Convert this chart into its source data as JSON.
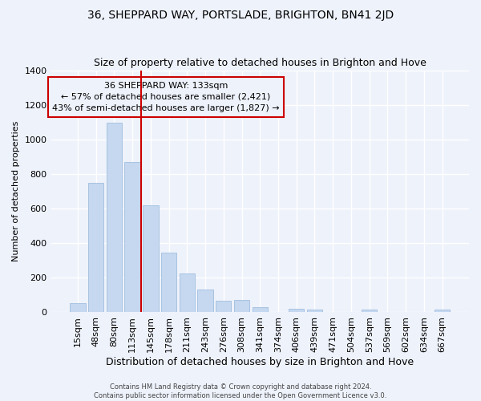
{
  "title": "36, SHEPPARD WAY, PORTSLADE, BRIGHTON, BN41 2JD",
  "subtitle": "Size of property relative to detached houses in Brighton and Hove",
  "xlabel": "Distribution of detached houses by size in Brighton and Hove",
  "ylabel": "Number of detached properties",
  "footnote1": "Contains HM Land Registry data © Crown copyright and database right 2024.",
  "footnote2": "Contains public sector information licensed under the Open Government Licence v3.0.",
  "categories": [
    "15sqm",
    "48sqm",
    "80sqm",
    "113sqm",
    "145sqm",
    "178sqm",
    "211sqm",
    "243sqm",
    "276sqm",
    "308sqm",
    "341sqm",
    "374sqm",
    "406sqm",
    "439sqm",
    "471sqm",
    "504sqm",
    "537sqm",
    "569sqm",
    "602sqm",
    "634sqm",
    "667sqm"
  ],
  "values": [
    50,
    750,
    1100,
    870,
    620,
    345,
    225,
    130,
    65,
    70,
    30,
    0,
    20,
    15,
    0,
    0,
    15,
    0,
    0,
    0,
    15
  ],
  "bar_color": "#c5d8f0",
  "bar_edge_color": "#a0bede",
  "vline_color": "#cc0000",
  "vline_position": 3.5,
  "annotation_line0": "36 SHEPPARD WAY: 133sqm",
  "annotation_line1": "← 57% of detached houses are smaller (2,421)",
  "annotation_line2": "43% of semi-detached houses are larger (1,827) →",
  "ylim": [
    0,
    1400
  ],
  "yticks": [
    0,
    200,
    400,
    600,
    800,
    1000,
    1200,
    1400
  ],
  "bg_color": "#eef2fb",
  "grid_color": "#ffffff",
  "title_fontsize": 10,
  "subtitle_fontsize": 9,
  "xlabel_fontsize": 9,
  "ylabel_fontsize": 8,
  "tick_fontsize": 8,
  "footnote_fontsize": 6
}
